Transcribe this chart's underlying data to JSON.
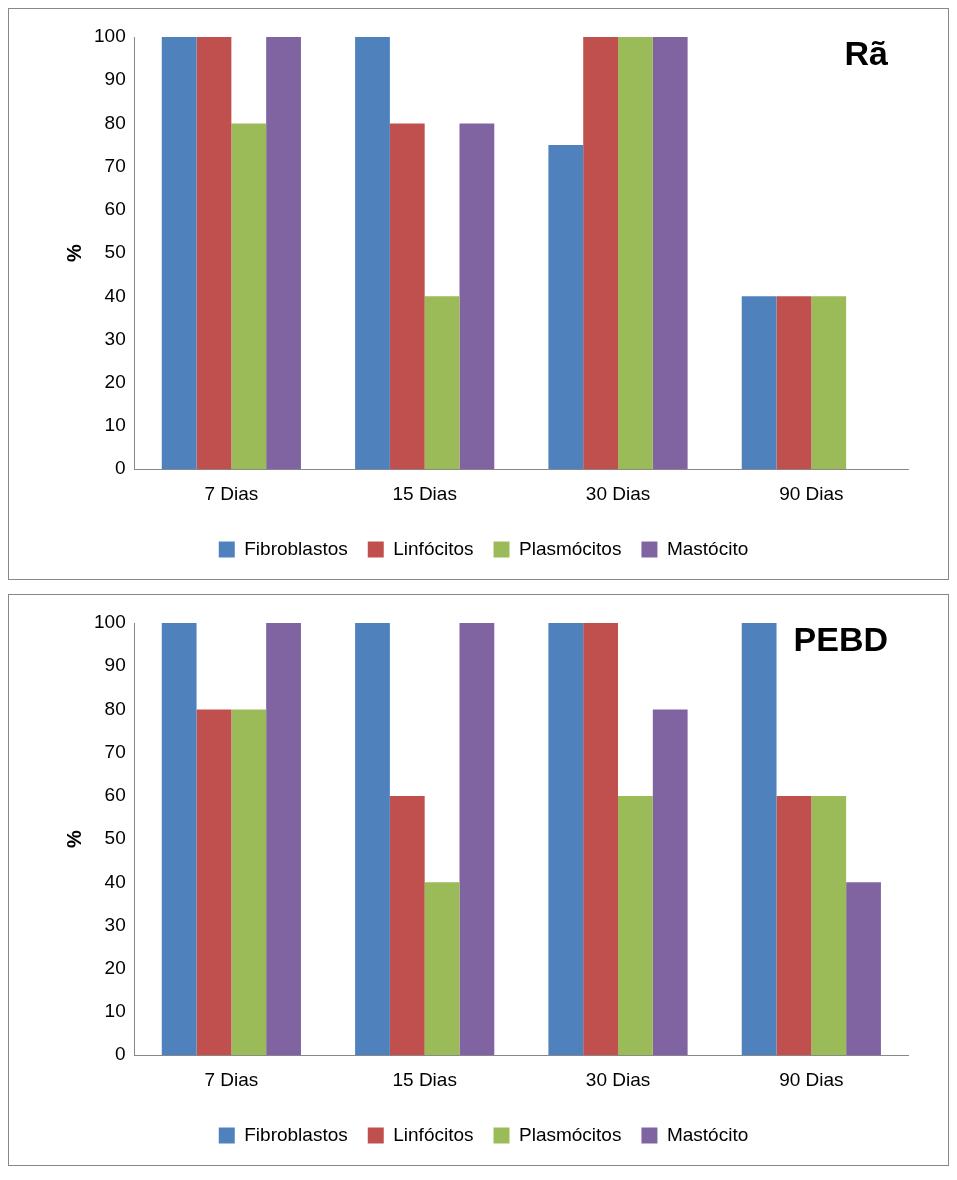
{
  "chart_data": [
    {
      "type": "bar",
      "title": "Rã",
      "ylabel": "%",
      "categories": [
        "7 Dias",
        "15 Dias",
        "30 Dias",
        "90 Dias"
      ],
      "ylim": [
        0,
        100
      ],
      "yticks": [
        0,
        10,
        20,
        30,
        40,
        50,
        60,
        70,
        80,
        90,
        100
      ],
      "grid": false,
      "legend": "bottom",
      "series": [
        {
          "name": "Fibroblastos",
          "color": "#4f81bd",
          "values": [
            100,
            100,
            75,
            40
          ]
        },
        {
          "name": "Linfócitos",
          "color": "#c0504d",
          "values": [
            100,
            80,
            100,
            40
          ]
        },
        {
          "name": "Plasmócitos",
          "color": "#9bbb59",
          "values": [
            80,
            40,
            100,
            40
          ]
        },
        {
          "name": "Mastócito",
          "color": "#8064a2",
          "values": [
            100,
            80,
            100,
            0
          ]
        }
      ]
    },
    {
      "type": "bar",
      "title": "PEBD",
      "ylabel": "%",
      "categories": [
        "7 Dias",
        "15 Dias",
        "30 Dias",
        "90 Dias"
      ],
      "ylim": [
        0,
        100
      ],
      "yticks": [
        0,
        10,
        20,
        30,
        40,
        50,
        60,
        70,
        80,
        90,
        100
      ],
      "grid": false,
      "legend": "bottom",
      "series": [
        {
          "name": "Fibroblastos",
          "color": "#4f81bd",
          "values": [
            100,
            100,
            100,
            100
          ]
        },
        {
          "name": "Linfócitos",
          "color": "#c0504d",
          "values": [
            80,
            60,
            100,
            60
          ]
        },
        {
          "name": "Plasmócitos",
          "color": "#9bbb59",
          "values": [
            80,
            40,
            60,
            60
          ]
        },
        {
          "name": "Mastócito",
          "color": "#8064a2",
          "values": [
            100,
            100,
            80,
            40
          ]
        }
      ]
    }
  ]
}
